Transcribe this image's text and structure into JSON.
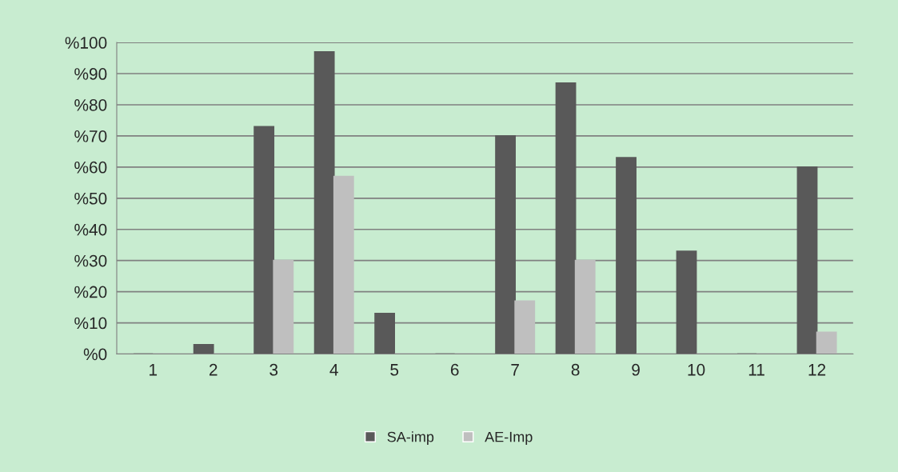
{
  "chart_data": {
    "type": "bar",
    "categories": [
      "1",
      "2",
      "3",
      "4",
      "5",
      "6",
      "7",
      "8",
      "9",
      "10",
      "11",
      "12"
    ],
    "series": [
      {
        "name": "SA-imp",
        "color": "#595959",
        "values": [
          0,
          3,
          73,
          97,
          13,
          0,
          70,
          87,
          63,
          33,
          0,
          60
        ]
      },
      {
        "name": "AE-Imp",
        "color": "#bfbfbf",
        "values": [
          0,
          0,
          30,
          57,
          0,
          0,
          17,
          30,
          0,
          0,
          0,
          7
        ]
      }
    ],
    "ylim": [
      0,
      100
    ],
    "yticks": [
      {
        "value": 0,
        "label": "%0"
      },
      {
        "value": 10,
        "label": "%10"
      },
      {
        "value": 20,
        "label": "%20"
      },
      {
        "value": 30,
        "label": "%30"
      },
      {
        "value": 40,
        "label": "%40"
      },
      {
        "value": 50,
        "label": "%50"
      },
      {
        "value": 60,
        "label": "%60"
      },
      {
        "value": 70,
        "label": "%70"
      },
      {
        "value": 80,
        "label": "%80"
      },
      {
        "value": 90,
        "label": "%90"
      },
      {
        "value": 100,
        "label": "%100"
      }
    ],
    "grid": "y",
    "legend": "bottom"
  }
}
